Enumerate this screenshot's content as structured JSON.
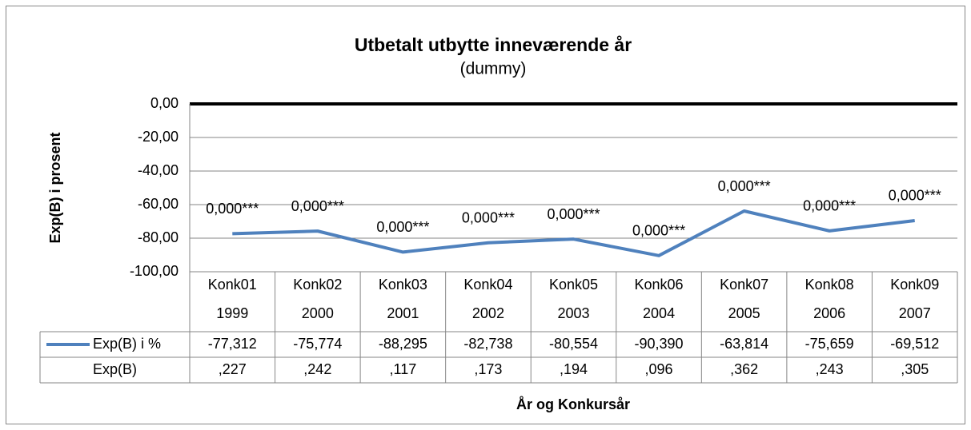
{
  "chart_data": {
    "type": "line",
    "title": "Utbetalt utbytte inneværende år",
    "subtitle": "(dummy)",
    "y_label": "Exp(B) i prosent",
    "x_label": "År og Konkursår",
    "categories": [
      [
        "Konk01",
        "1999"
      ],
      [
        "Konk02",
        "2000"
      ],
      [
        "Konk03",
        "2001"
      ],
      [
        "Konk04",
        "2002"
      ],
      [
        "Konk05",
        "2003"
      ],
      [
        "Konk06",
        "2004"
      ],
      [
        "Konk07",
        "2005"
      ],
      [
        "Konk08",
        "2006"
      ],
      [
        "Konk09",
        "2007"
      ]
    ],
    "series": [
      {
        "name": "Exp(B) i %",
        "color": "#4f81bd",
        "values": [
          -77.312,
          -75.774,
          -88.295,
          -82.738,
          -80.554,
          -90.39,
          -63.814,
          -75.659,
          -69.512
        ],
        "value_labels": [
          "-77,312",
          "-75,774",
          "-88,295",
          "-82,738",
          "-80,554",
          "-90,390",
          "-63,814",
          "-75,659",
          "-69,512"
        ],
        "point_labels": [
          "0,000***",
          "0,000***",
          "0,000***",
          "0,000***",
          "0,000***",
          "0,000***",
          "0,000***",
          "0,000***",
          "0,000***"
        ]
      }
    ],
    "table_rows": [
      {
        "name": "Exp(B)",
        "values": [
          0.227,
          0.242,
          0.117,
          0.173,
          0.194,
          0.096,
          0.362,
          0.243,
          0.305
        ],
        "value_labels": [
          ",227",
          ",242",
          ",117",
          ",173",
          ",194",
          ",096",
          ",362",
          ",243",
          ",305"
        ]
      }
    ],
    "ylim": [
      -100,
      0
    ],
    "yticks": [
      {
        "value": 0,
        "label": "0,00"
      },
      {
        "value": -20,
        "label": "-20,00"
      },
      {
        "value": -40,
        "label": "-40,00"
      },
      {
        "value": -60,
        "label": "-60,00"
      },
      {
        "value": -80,
        "label": "-80,00"
      },
      {
        "value": -100,
        "label": "-100,00"
      }
    ],
    "grid": true
  }
}
